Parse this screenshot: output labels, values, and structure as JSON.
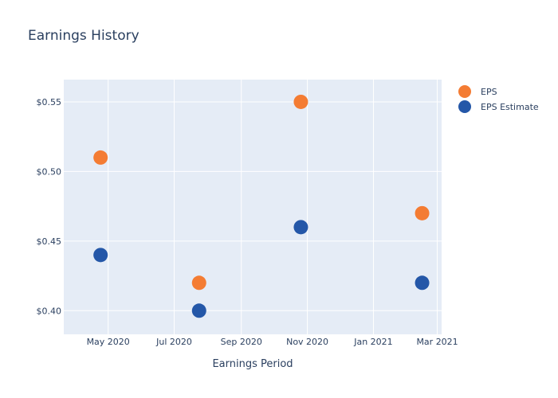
{
  "chart_data": {
    "type": "scatter",
    "title": "Earnings History",
    "xlabel": "Earnings Period",
    "ylabel": "",
    "x_ticks": [
      {
        "date": "2020-05-01",
        "label": "May 2020"
      },
      {
        "date": "2020-07-01",
        "label": "Jul 2020"
      },
      {
        "date": "2020-09-01",
        "label": "Sep 2020"
      },
      {
        "date": "2020-11-01",
        "label": "Nov 2020"
      },
      {
        "date": "2021-01-01",
        "label": "Jan 2021"
      },
      {
        "date": "2021-03-01",
        "label": "Mar 2021"
      }
    ],
    "y_ticks": [
      {
        "value": 0.4,
        "label": "$0.40"
      },
      {
        "value": 0.45,
        "label": "$0.45"
      },
      {
        "value": 0.5,
        "label": "$0.50"
      },
      {
        "value": 0.55,
        "label": "$0.55"
      }
    ],
    "xlim": [
      "2020-03-21",
      "2021-03-05"
    ],
    "ylim": [
      0.383,
      0.566
    ],
    "grid": true,
    "legend_position": "top-right",
    "series": [
      {
        "name": "EPS",
        "color": "#f47c33",
        "points": [
          {
            "x": "2020-04-24",
            "y": 0.51
          },
          {
            "x": "2020-07-24",
            "y": 0.42
          },
          {
            "x": "2020-10-26",
            "y": 0.55
          },
          {
            "x": "2021-02-15",
            "y": 0.47
          }
        ]
      },
      {
        "name": "EPS Estimate",
        "color": "#2457a8",
        "points": [
          {
            "x": "2020-04-24",
            "y": 0.44
          },
          {
            "x": "2020-07-24",
            "y": 0.4
          },
          {
            "x": "2020-10-26",
            "y": 0.46
          },
          {
            "x": "2021-02-15",
            "y": 0.42
          }
        ]
      }
    ]
  },
  "colors": {
    "plot_background": "#e5ecf6",
    "gridline": "#ffffff",
    "text": "#2a3f5f"
  }
}
